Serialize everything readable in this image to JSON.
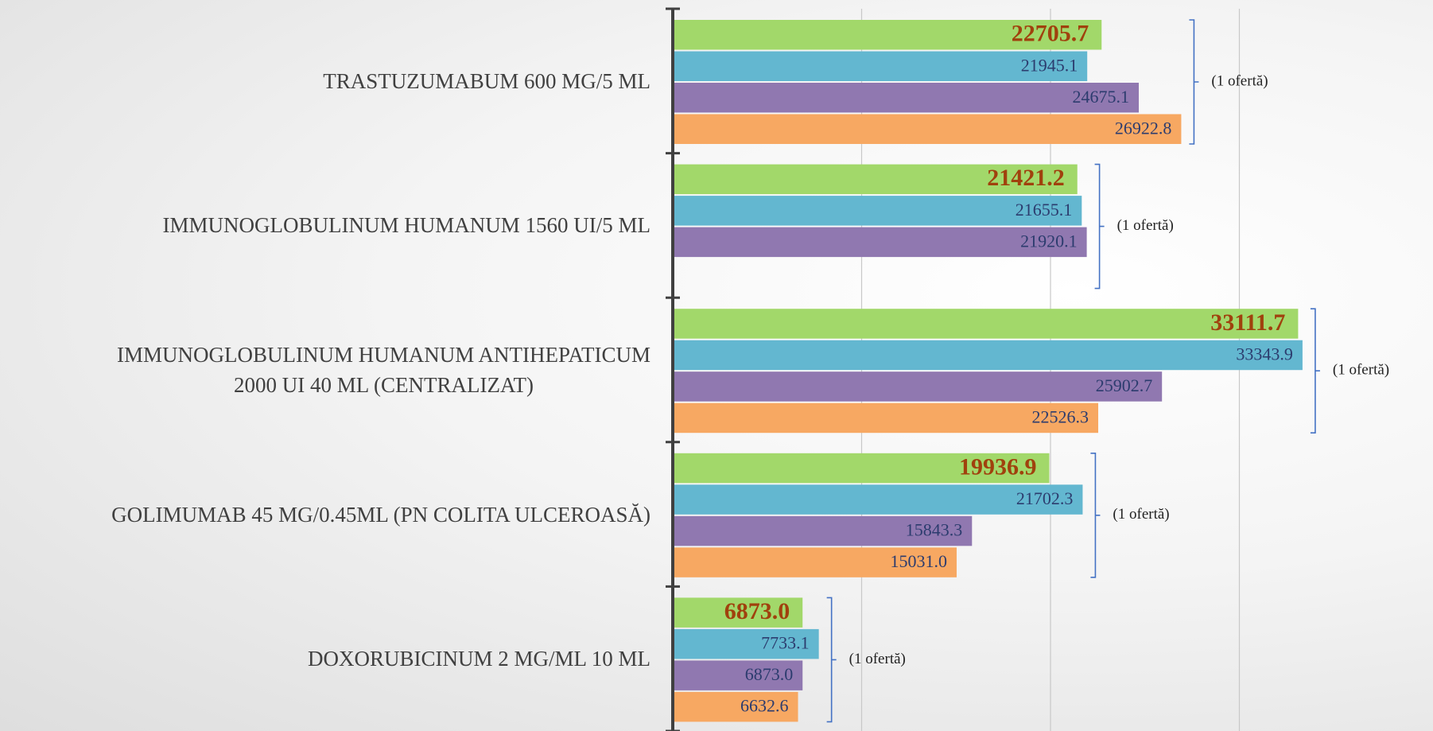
{
  "chart_data": {
    "type": "bar",
    "orientation": "horizontal",
    "categories": [
      "TRASTUZUMABUM 600 MG/5 ML",
      "IMMUNOGLOBULINUM HUMANUM 1560 UI/5 ML",
      "IMMUNOGLOBULINUM HUMANUM ANTIHEPATICUM\n2000 UI 40 ML (CENTRALIZAT)",
      "GOLIMUMAB 45 MG/0.45ML (PN COLITA ULCEROASĂ)",
      "DOXORUBICINUM 2 MG/ML 10 ML"
    ],
    "series": [
      {
        "color": "#a2d86a",
        "values": [
          22705.7,
          21421.2,
          33111.7,
          19936.9,
          6873.0
        ],
        "value_labels": [
          "22705.7",
          "21421.2",
          "33111.7",
          "19936.9",
          "6873.0"
        ]
      },
      {
        "color": "#63b7d0",
        "values": [
          21945.1,
          21655.1,
          33343.9,
          21702.3,
          7733.1
        ],
        "value_labels": [
          "21945.1",
          "21655.1",
          "33343.9",
          "21702.3",
          "7733.1"
        ]
      },
      {
        "color": "#9078b0",
        "values": [
          24675.1,
          21920.1,
          25902.7,
          15843.3,
          6873.0
        ],
        "value_labels": [
          "24675.1",
          "21920.1",
          "25902.7",
          "15843.3",
          "6873.0"
        ]
      },
      {
        "color": "#f7a862",
        "values": [
          26922.8,
          null,
          22526.3,
          15031.0,
          6632.6
        ],
        "value_labels": [
          "26922.8",
          null,
          "22526.3",
          "15031.0",
          "6632.6"
        ]
      }
    ],
    "annotations": [
      "(1 ofertă)",
      "(1 ofertă)",
      "(1 ofertă)",
      "(1 ofertă)",
      "(1 ofertă)"
    ],
    "xlim": [
      0,
      40000
    ],
    "xticks": [
      0,
      10000,
      20000,
      30000
    ],
    "grid": true
  }
}
